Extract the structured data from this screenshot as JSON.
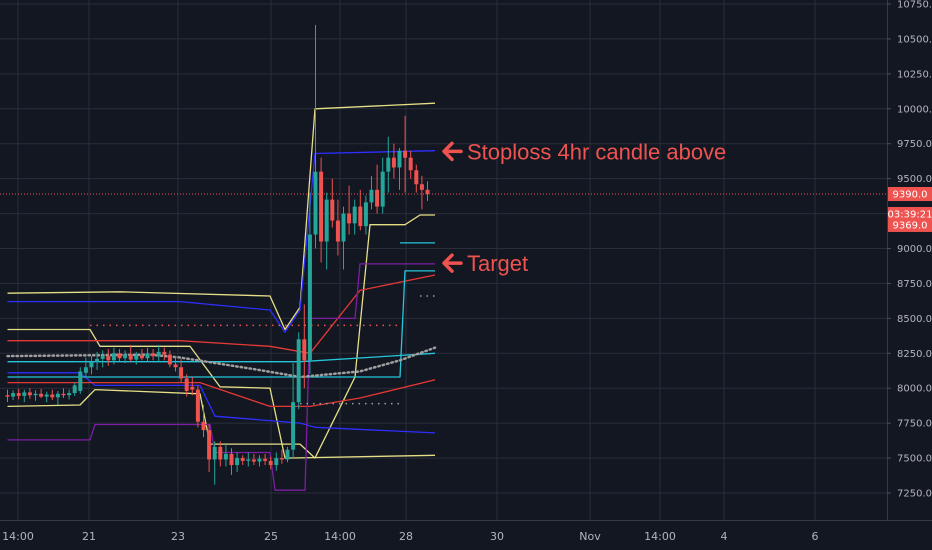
{
  "chart_data": {
    "type": "candlestick",
    "y_axis": {
      "ticks": [
        "10750.0",
        "10500.0",
        "10250.0",
        "10000.0",
        "9750.0",
        "9500.0",
        "9250.0",
        "9000.0",
        "8750.0",
        "8500.0",
        "8250.0",
        "8000.0",
        "7750.0",
        "7500.0",
        "7250.0"
      ],
      "tick_values": [
        10750,
        10500,
        10250,
        10000,
        9750,
        9500,
        9250,
        9000,
        8750,
        8500,
        8250,
        8000,
        7750,
        7500,
        7250
      ],
      "range": [
        7120,
        10760
      ],
      "side": "right"
    },
    "x_axis": {
      "ticks": [
        "14:00",
        "21",
        "23",
        "25",
        "14:00",
        "28",
        "30",
        "Nov",
        "14:00",
        "4",
        "6"
      ]
    },
    "grid": true,
    "price_tags": {
      "current_price": "9390.0",
      "countdown": "03:39:21",
      "low_tag": "9369.0",
      "current_price_value": 9390,
      "low_tag_value": 9369
    },
    "colors": {
      "background": "#131722",
      "up": "#26a69a",
      "down": "#ef5350",
      "grid": "#2a2e39",
      "annotation": "#ef5350",
      "yellow_band": "#e6df86",
      "blue_line": "#2e2eff",
      "red_line": "#e53935",
      "purple_line": "#7b1fa2",
      "cyan_line": "#26c6da",
      "dots": "#9e9e9e"
    },
    "annotations": [
      {
        "text": "Stoploss 4hr candle above",
        "price": 9695,
        "icon": "arrow-left-icon"
      },
      {
        "text": "Target",
        "price": 8895,
        "icon": "arrow-left-icon"
      }
    ],
    "candles": [
      {
        "o": 7950,
        "h": 7990,
        "l": 7900,
        "c": 7940
      },
      {
        "o": 7940,
        "h": 7985,
        "l": 7915,
        "c": 7965
      },
      {
        "o": 7965,
        "h": 7995,
        "l": 7920,
        "c": 7945
      },
      {
        "o": 7945,
        "h": 7990,
        "l": 7900,
        "c": 7970
      },
      {
        "o": 7970,
        "h": 8000,
        "l": 7925,
        "c": 7950
      },
      {
        "o": 7950,
        "h": 7985,
        "l": 7910,
        "c": 7960
      },
      {
        "o": 7960,
        "h": 7995,
        "l": 7930,
        "c": 7940
      },
      {
        "o": 7940,
        "h": 7975,
        "l": 7900,
        "c": 7955
      },
      {
        "o": 7955,
        "h": 7990,
        "l": 7915,
        "c": 7935
      },
      {
        "o": 7935,
        "h": 7980,
        "l": 7880,
        "c": 7960
      },
      {
        "o": 7960,
        "h": 8000,
        "l": 7930,
        "c": 7950
      },
      {
        "o": 7950,
        "h": 7990,
        "l": 7920,
        "c": 7965
      },
      {
        "o": 7965,
        "h": 8040,
        "l": 7945,
        "c": 8020
      },
      {
        "o": 7980,
        "h": 8150,
        "l": 7960,
        "c": 8120
      },
      {
        "o": 8110,
        "h": 8220,
        "l": 8080,
        "c": 8150
      },
      {
        "o": 8150,
        "h": 8230,
        "l": 8100,
        "c": 8190
      },
      {
        "o": 8190,
        "h": 8260,
        "l": 8130,
        "c": 8210
      },
      {
        "o": 8210,
        "h": 8270,
        "l": 8150,
        "c": 8230
      },
      {
        "o": 8230,
        "h": 8280,
        "l": 8160,
        "c": 8200
      },
      {
        "o": 8200,
        "h": 8290,
        "l": 8170,
        "c": 8250
      },
      {
        "o": 8250,
        "h": 8280,
        "l": 8190,
        "c": 8215
      },
      {
        "o": 8215,
        "h": 8270,
        "l": 8180,
        "c": 8240
      },
      {
        "o": 8240,
        "h": 8310,
        "l": 8190,
        "c": 8205
      },
      {
        "o": 8205,
        "h": 8260,
        "l": 8170,
        "c": 8235
      },
      {
        "o": 8235,
        "h": 8280,
        "l": 8200,
        "c": 8215
      },
      {
        "o": 8215,
        "h": 8290,
        "l": 8190,
        "c": 8250
      },
      {
        "o": 8250,
        "h": 8280,
        "l": 8200,
        "c": 8230
      },
      {
        "o": 8230,
        "h": 8310,
        "l": 8190,
        "c": 8260
      },
      {
        "o": 8260,
        "h": 8290,
        "l": 8200,
        "c": 8240
      },
      {
        "o": 8240,
        "h": 8270,
        "l": 8150,
        "c": 8170
      },
      {
        "o": 8170,
        "h": 8230,
        "l": 8120,
        "c": 8150
      },
      {
        "o": 8150,
        "h": 8210,
        "l": 8040,
        "c": 8070
      },
      {
        "o": 8070,
        "h": 8100,
        "l": 7940,
        "c": 7980
      },
      {
        "o": 8010,
        "h": 8080,
        "l": 7950,
        "c": 7990
      },
      {
        "o": 7990,
        "h": 8020,
        "l": 7720,
        "c": 7760
      },
      {
        "o": 7760,
        "h": 7880,
        "l": 7650,
        "c": 7700
      },
      {
        "o": 7700,
        "h": 7740,
        "l": 7400,
        "c": 7490
      },
      {
        "o": 7490,
        "h": 7620,
        "l": 7310,
        "c": 7580
      },
      {
        "o": 7580,
        "h": 7620,
        "l": 7440,
        "c": 7490
      },
      {
        "o": 7490,
        "h": 7600,
        "l": 7440,
        "c": 7530
      },
      {
        "o": 7530,
        "h": 7570,
        "l": 7380,
        "c": 7450
      },
      {
        "o": 7450,
        "h": 7540,
        "l": 7400,
        "c": 7500
      },
      {
        "o": 7500,
        "h": 7520,
        "l": 7450,
        "c": 7480
      },
      {
        "o": 7480,
        "h": 7540,
        "l": 7440,
        "c": 7490
      },
      {
        "o": 7490,
        "h": 7530,
        "l": 7450,
        "c": 7475
      },
      {
        "o": 7475,
        "h": 7520,
        "l": 7440,
        "c": 7495
      },
      {
        "o": 7495,
        "h": 7530,
        "l": 7450,
        "c": 7480
      },
      {
        "o": 7480,
        "h": 7510,
        "l": 7420,
        "c": 7450
      },
      {
        "o": 7450,
        "h": 7540,
        "l": 7410,
        "c": 7500
      },
      {
        "o": 7500,
        "h": 7560,
        "l": 7460,
        "c": 7490
      },
      {
        "o": 7490,
        "h": 7580,
        "l": 7470,
        "c": 7560
      },
      {
        "o": 7560,
        "h": 8180,
        "l": 7500,
        "c": 7900
      },
      {
        "o": 7900,
        "h": 8400,
        "l": 7850,
        "c": 8350
      },
      {
        "o": 8350,
        "h": 8600,
        "l": 8000,
        "c": 8200
      },
      {
        "o": 8200,
        "h": 9400,
        "l": 8100,
        "c": 9100
      },
      {
        "o": 9100,
        "h": 10600,
        "l": 9000,
        "c": 9550
      },
      {
        "o": 9550,
        "h": 9650,
        "l": 8900,
        "c": 9050
      },
      {
        "o": 9050,
        "h": 9400,
        "l": 8850,
        "c": 9350
      },
      {
        "o": 9350,
        "h": 9500,
        "l": 9150,
        "c": 9200
      },
      {
        "o": 9200,
        "h": 9350,
        "l": 8950,
        "c": 9050
      },
      {
        "o": 9050,
        "h": 9300,
        "l": 8850,
        "c": 9250
      },
      {
        "o": 9250,
        "h": 9450,
        "l": 9100,
        "c": 9180
      },
      {
        "o": 9180,
        "h": 9350,
        "l": 9100,
        "c": 9300
      },
      {
        "o": 9300,
        "h": 9420,
        "l": 9130,
        "c": 9160
      },
      {
        "o": 9160,
        "h": 9380,
        "l": 9100,
        "c": 9330
      },
      {
        "o": 9330,
        "h": 9520,
        "l": 9280,
        "c": 9420
      },
      {
        "o": 9420,
        "h": 9600,
        "l": 9250,
        "c": 9300
      },
      {
        "o": 9300,
        "h": 9650,
        "l": 9250,
        "c": 9550
      },
      {
        "o": 9550,
        "h": 9800,
        "l": 9400,
        "c": 9650
      },
      {
        "o": 9650,
        "h": 9750,
        "l": 9500,
        "c": 9580
      },
      {
        "o": 9580,
        "h": 9720,
        "l": 9420,
        "c": 9700
      },
      {
        "o": 9700,
        "h": 9950,
        "l": 9400,
        "c": 9650
      },
      {
        "o": 9650,
        "h": 9700,
        "l": 9500,
        "c": 9560
      },
      {
        "o": 9560,
        "h": 9600,
        "l": 9400,
        "c": 9460
      },
      {
        "o": 9460,
        "h": 9520,
        "l": 9280,
        "c": 9420
      },
      {
        "o": 9420,
        "h": 9480,
        "l": 9340,
        "c": 9390
      }
    ],
    "overlays": [
      {
        "color": "#e6df86",
        "points": [
          [
            7.5,
            8680
          ],
          [
            120,
            8690
          ],
          [
            270,
            8660
          ],
          [
            285,
            8420
          ],
          [
            300,
            8580
          ],
          [
            315,
            10000
          ],
          [
            435,
            10040
          ]
        ]
      },
      {
        "color": "#e6df86",
        "points": [
          [
            7.5,
            8420
          ],
          [
            90,
            8420
          ],
          [
            100,
            8300
          ],
          [
            190,
            8300
          ],
          [
            220,
            8010
          ],
          [
            270,
            8000
          ],
          [
            285,
            7500
          ],
          [
            435,
            7520
          ]
        ]
      },
      {
        "color": "#e6df86",
        "points": [
          [
            7.5,
            7870
          ],
          [
            80,
            7880
          ],
          [
            95,
            7990
          ],
          [
            200,
            7960
          ],
          [
            210,
            7600
          ],
          [
            300,
            7600
          ],
          [
            315,
            7500
          ],
          [
            355,
            8080
          ],
          [
            370,
            9170
          ],
          [
            405,
            9170
          ],
          [
            420,
            9240
          ],
          [
            435,
            9240
          ]
        ]
      },
      {
        "color": "#2e2eff",
        "points": [
          [
            7.5,
            8620
          ],
          [
            180,
            8620
          ],
          [
            270,
            8560
          ],
          [
            285,
            8400
          ],
          [
            300,
            8560
          ],
          [
            315,
            9680
          ],
          [
            435,
            9700
          ]
        ]
      },
      {
        "color": "#2e2eff",
        "points": [
          [
            7.5,
            8110
          ],
          [
            80,
            8110
          ],
          [
            95,
            8020
          ],
          [
            200,
            8020
          ],
          [
            215,
            7800
          ],
          [
            300,
            7750
          ],
          [
            315,
            7720
          ],
          [
            435,
            7680
          ]
        ]
      },
      {
        "color": "#e53935",
        "points": [
          [
            7.5,
            8340
          ],
          [
            180,
            8340
          ],
          [
            270,
            8300
          ],
          [
            310,
            8250
          ],
          [
            360,
            8700
          ],
          [
            435,
            8810
          ]
        ]
      },
      {
        "color": "#e53935",
        "points": [
          [
            7.5,
            8040
          ],
          [
            200,
            8040
          ],
          [
            270,
            7870
          ],
          [
            310,
            7870
          ],
          [
            360,
            7930
          ],
          [
            435,
            8060
          ]
        ]
      },
      {
        "color": "#7b1fa2",
        "points": [
          [
            7.5,
            7630
          ],
          [
            90,
            7630
          ],
          [
            95,
            7740
          ],
          [
            210,
            7740
          ],
          [
            215,
            7540
          ],
          [
            270,
            7540
          ],
          [
            275,
            7270
          ],
          [
            305,
            7270
          ],
          [
            310,
            8500
          ],
          [
            355,
            8500
          ],
          [
            360,
            8890
          ],
          [
            435,
            8890
          ]
        ]
      },
      {
        "color": "#26c6da",
        "points": [
          [
            7.5,
            8190
          ],
          [
            300,
            8190
          ],
          [
            435,
            8250
          ]
        ]
      },
      {
        "color": "#26c6da",
        "points": [
          [
            7.5,
            8080
          ],
          [
            400,
            8080
          ],
          [
            405,
            8840
          ],
          [
            435,
            8840
          ]
        ]
      },
      {
        "color": "#26c6da",
        "points": [
          [
            400,
            9040
          ],
          [
            435,
            9040
          ]
        ]
      }
    ],
    "ma_dots": {
      "color": "#9e9e9e",
      "points": [
        [
          7.5,
          8230
        ],
        [
          150,
          8240
        ],
        [
          180,
          8220
        ],
        [
          260,
          8130
        ],
        [
          300,
          8080
        ],
        [
          360,
          8120
        ],
        [
          400,
          8200
        ],
        [
          435,
          8290
        ]
      ]
    },
    "dotted_levels": [
      {
        "color": "#ef5350",
        "price": 8450,
        "from": 90,
        "to": 400
      },
      {
        "color": "#9e9e9e",
        "price": 8660,
        "from": 420,
        "to": 435
      },
      {
        "color": "#9e9e9e",
        "price": 7890,
        "from": 300,
        "to": 400
      }
    ]
  }
}
